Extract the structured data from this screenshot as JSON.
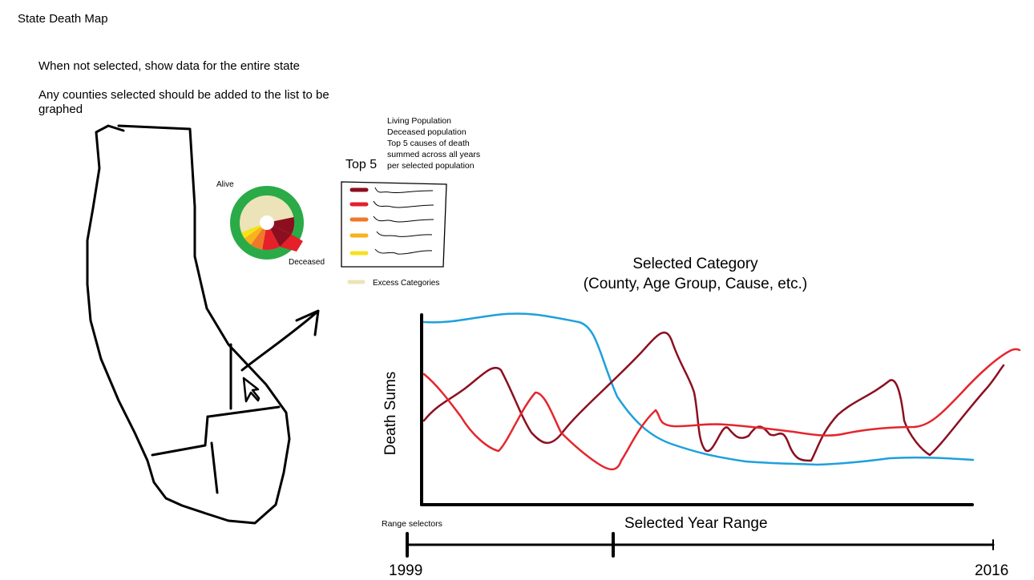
{
  "app": {
    "title": "State Death Map"
  },
  "notes": {
    "unselected": "When not selected, show data for the entire state",
    "selection": "Any counties selected should be added to the list to be graphed"
  },
  "donut": {
    "alive_label": "Alive",
    "deceased_label": "Deceased",
    "colors": {
      "alive": "#2aab48",
      "excess": "#ede3b8",
      "cause_1": "#8b0f1f",
      "cause_2": "#e4202b",
      "cause_3": "#f07828",
      "cause_4": "#f8b21c",
      "cause_5": "#f4e21c"
    }
  },
  "top5": {
    "title": "Top 5",
    "description": [
      "Living Population",
      "Deceased population",
      "Top 5 causes of death",
      "summed across all years",
      "per selected population"
    ],
    "excess_label": "Excess Categories",
    "swatch_colors": [
      "#8b0f1f",
      "#e4202b",
      "#f07828",
      "#f8b21c",
      "#f4e21c"
    ],
    "excess_color": "#ede3b8"
  },
  "chart": {
    "title": "Selected Category (County, Age Group, Cause, etc.)",
    "y_label": "Death Sums",
    "x_label": "Selected Year Range",
    "series_colors": {
      "blue": "#1ea0dc",
      "dark_red": "#8b1020",
      "red": "#e4262d"
    }
  },
  "range": {
    "label": "Range selectors",
    "start_year": "1999",
    "end_year": "2016"
  }
}
